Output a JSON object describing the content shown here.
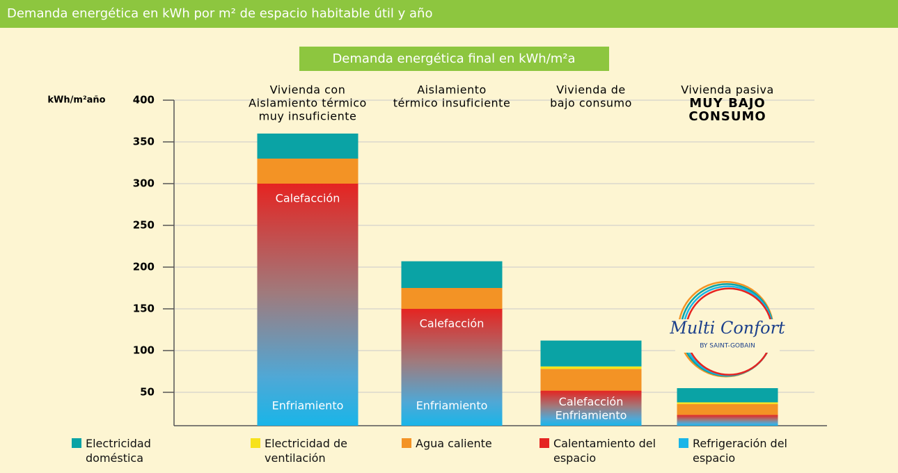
{
  "header": {
    "title": "Demanda energética en kWh por m² de espacio habitable útil y año"
  },
  "chart_data": {
    "type": "stacked_bar",
    "title": "Demanda energética final en kWh/m²a",
    "y_label": "kWh/m²año",
    "categories": [
      [
        "Vivienda con",
        "Aislamiento térmico",
        "muy insuficiente"
      ],
      [
        "Aislamiento",
        "térmico insuficiente"
      ],
      [
        "Vivienda de",
        "bajo consumo"
      ],
      [
        "Vivienda pasiva",
        "MUY BAJO",
        "CONSUMO"
      ]
    ],
    "inner_labels": [
      [
        "Calefacción",
        "Enfriamiento"
      ],
      [
        "Calefacción",
        "Enfriamiento"
      ],
      [
        "Calefacción",
        "Enfriamiento"
      ],
      null
    ],
    "series": [
      {
        "name": "Refrigeración del espacio",
        "color": "#19b5e8",
        "values": [
          50,
          50,
          30,
          20
        ]
      },
      {
        "name": "Calentamiento del espacio",
        "color": "#e52421",
        "values": [
          250,
          100,
          22,
          3
        ]
      },
      {
        "name": "Agua caliente",
        "color": "#f39325",
        "values": [
          30,
          25,
          26,
          13
        ]
      },
      {
        "name": "Electricidad de ventilación",
        "color": "#f7e21b",
        "values": [
          0,
          0,
          3,
          2
        ]
      },
      {
        "name": "Electricidad doméstica",
        "color": "#0aa3a5",
        "values": [
          30,
          32,
          31,
          17
        ]
      }
    ],
    "ylim": [
      10,
      400
    ],
    "yticks": [
      50,
      100,
      150,
      200,
      250,
      300,
      350,
      400
    ],
    "grid": true,
    "logo": {
      "title": "Multi Confort",
      "subtitle": "BY SAINT-GOBAIN"
    }
  }
}
